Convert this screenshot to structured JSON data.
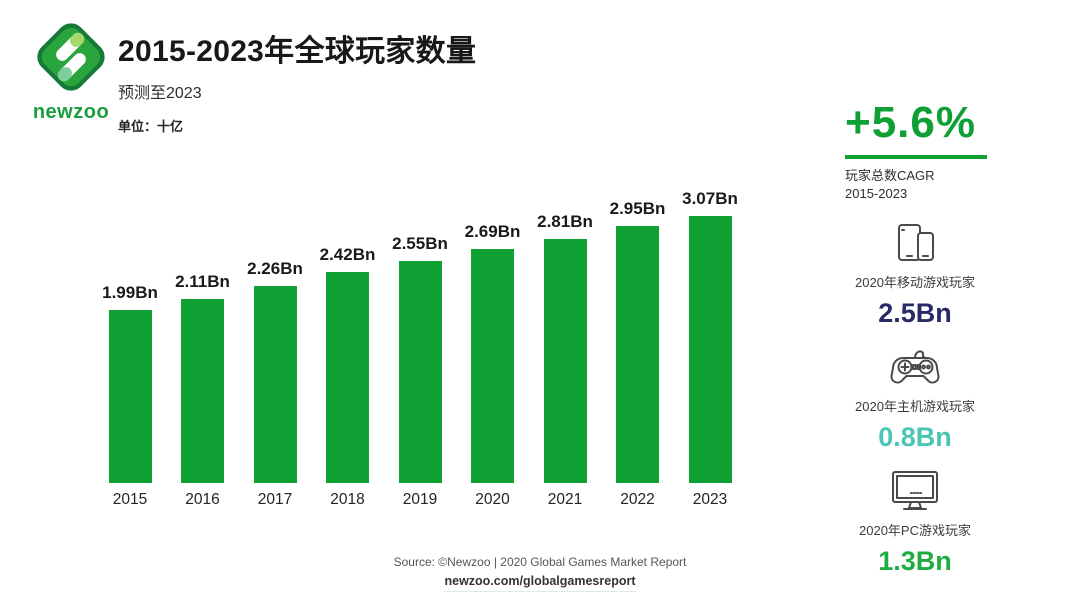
{
  "brand": {
    "wordmark": "newzoo"
  },
  "header": {
    "title": "2015-2023年全球玩家数量",
    "subtitle": "预测至2023",
    "unit_label": "单位：十亿"
  },
  "chart_data": {
    "type": "bar",
    "title": "2015-2023年全球玩家数量",
    "categories": [
      "2015",
      "2016",
      "2017",
      "2018",
      "2019",
      "2020",
      "2021",
      "2022",
      "2023"
    ],
    "values": [
      1.99,
      2.11,
      2.26,
      2.42,
      2.55,
      2.69,
      2.81,
      2.95,
      3.07
    ],
    "value_labels": [
      "1.99Bn",
      "2.11Bn",
      "2.26Bn",
      "2.42Bn",
      "2.55Bn",
      "2.69Bn",
      "2.81Bn",
      "2.95Bn",
      "3.07Bn"
    ],
    "xlabel": "",
    "ylabel": "单位：十亿",
    "ylim": [
      0,
      3.3
    ],
    "bar_color": "#0ea033",
    "grid": false,
    "legend": false
  },
  "side_panel": {
    "cagr": {
      "value": "+5.6%",
      "label_line1": "玩家总数CAGR",
      "label_line2": "2015-2023",
      "accent_color": "#0ea033"
    },
    "items": [
      {
        "icon": "mobile-devices-icon",
        "label": "2020年移动游戏玩家",
        "value": "2.5Bn",
        "value_color": "#272a66"
      },
      {
        "icon": "gamepad-icon",
        "label": "2020年主机游戏玩家",
        "value": "0.8Bn",
        "value_color": "#4cc6b4"
      },
      {
        "icon": "pc-monitor-icon",
        "label": "2020年PC游戏玩家",
        "value": "1.3Bn",
        "value_color": "#1fad42"
      }
    ]
  },
  "footer": {
    "source_line": "Source: ©Newzoo | 2020 Global Games Market Report",
    "link": "newzoo.com/globalgamesreport"
  }
}
